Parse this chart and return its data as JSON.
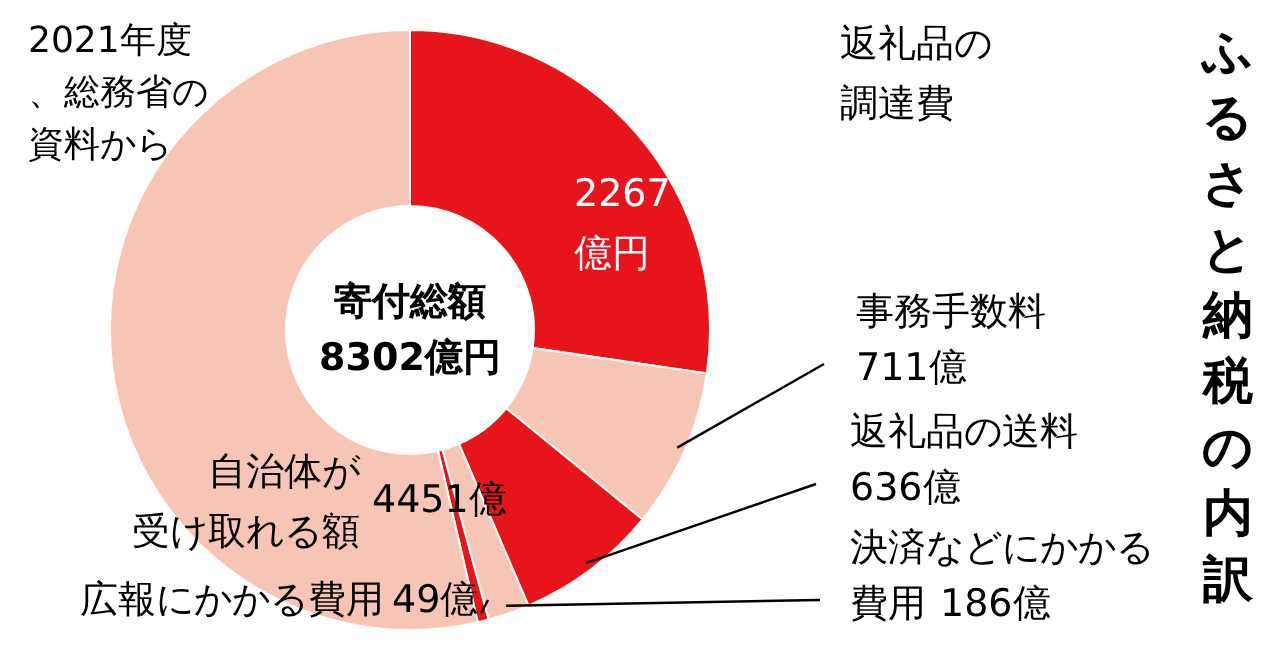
{
  "chart_data": {
    "type": "donut",
    "title": "ふるさと納税の内訳",
    "categories": [
      "返礼品の調達費",
      "事務手数料",
      "返礼品の送料",
      "決済などにかかる費用",
      "広報にかかる費用",
      "自治体が受け取れる額"
    ],
    "values": [
      2267,
      711,
      636,
      186,
      49,
      4451
    ],
    "value_labels": [
      "2267億円",
      "711億",
      "636億",
      "186億",
      "49億",
      "4451億"
    ],
    "colors": [
      "#e8141c",
      "#f7c5b5",
      "#e8141c",
      "#f7c5b5",
      "#e8141c",
      "#f7c5b5"
    ],
    "annotations": [
      "寄付総額",
      "8302億円",
      "2021年度、総務省の資料から"
    ]
  }
}
